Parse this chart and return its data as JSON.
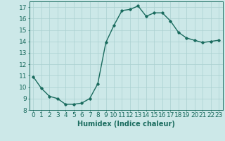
{
  "x": [
    0,
    1,
    2,
    3,
    4,
    5,
    6,
    7,
    8,
    9,
    10,
    11,
    12,
    13,
    14,
    15,
    16,
    17,
    18,
    19,
    20,
    21,
    22,
    23
  ],
  "y": [
    10.9,
    9.9,
    9.2,
    9.0,
    8.5,
    8.5,
    8.6,
    9.0,
    10.3,
    13.9,
    15.4,
    16.7,
    16.8,
    17.1,
    16.2,
    16.5,
    16.5,
    15.8,
    14.8,
    14.3,
    14.1,
    13.9,
    14.0,
    14.1
  ],
  "line_color": "#1a6b5e",
  "bg_color": "#cce8e8",
  "grid_color": "#aad0d0",
  "xlabel": "Humidex (Indice chaleur)",
  "ylim": [
    8,
    17.5
  ],
  "xlim": [
    -0.5,
    23.5
  ],
  "yticks": [
    8,
    9,
    10,
    11,
    12,
    13,
    14,
    15,
    16,
    17
  ],
  "xticks": [
    0,
    1,
    2,
    3,
    4,
    5,
    6,
    7,
    8,
    9,
    10,
    11,
    12,
    13,
    14,
    15,
    16,
    17,
    18,
    19,
    20,
    21,
    22,
    23
  ],
  "marker": "D",
  "marker_size": 1.8,
  "line_width": 1.0,
  "xlabel_fontsize": 7,
  "tick_fontsize": 6.5
}
